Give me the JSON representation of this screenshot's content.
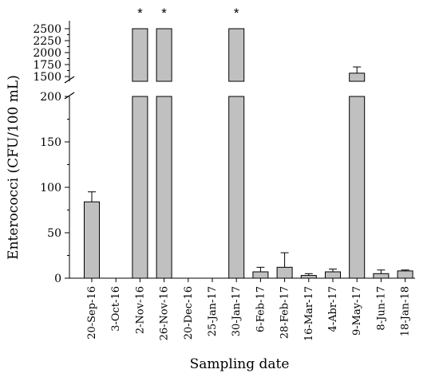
{
  "chart_data": {
    "type": "bar",
    "xlabel": "Sampling date",
    "ylabel": "Enterococci (CFU/100 mL)",
    "broken_axis": true,
    "lower_ylim": [
      0,
      200
    ],
    "lower_yticks": [
      "0",
      "50",
      "100",
      "150",
      "200"
    ],
    "upper_ylim": [
      1400,
      2500
    ],
    "upper_yticks": [
      "1500",
      "1750",
      "2000",
      "2250",
      "2500"
    ],
    "bar_color": "#c0c0c0",
    "categories": [
      "20-Sep-16",
      "3-Oct-16",
      "2-Nov-16",
      "26-Nov-16",
      "20-Dec-16",
      "25-Jan-17",
      "30-Jan-17",
      "6-Feb-17",
      "28-Feb-17",
      "16-Mar-17",
      "4-Abr-17",
      "9-May-17",
      "8-Jun-17",
      "18-Jan-18"
    ],
    "values": [
      84,
      0,
      2500,
      2500,
      0,
      0,
      2500,
      7,
      12,
      3,
      7,
      1570,
      5,
      8
    ],
    "errors": [
      11,
      0,
      0,
      0,
      0,
      0,
      0,
      5,
      16,
      2,
      3,
      130,
      4,
      1
    ],
    "star_marker": "*",
    "starred": [
      false,
      false,
      true,
      true,
      false,
      false,
      true,
      false,
      false,
      false,
      false,
      false,
      false,
      false
    ]
  }
}
